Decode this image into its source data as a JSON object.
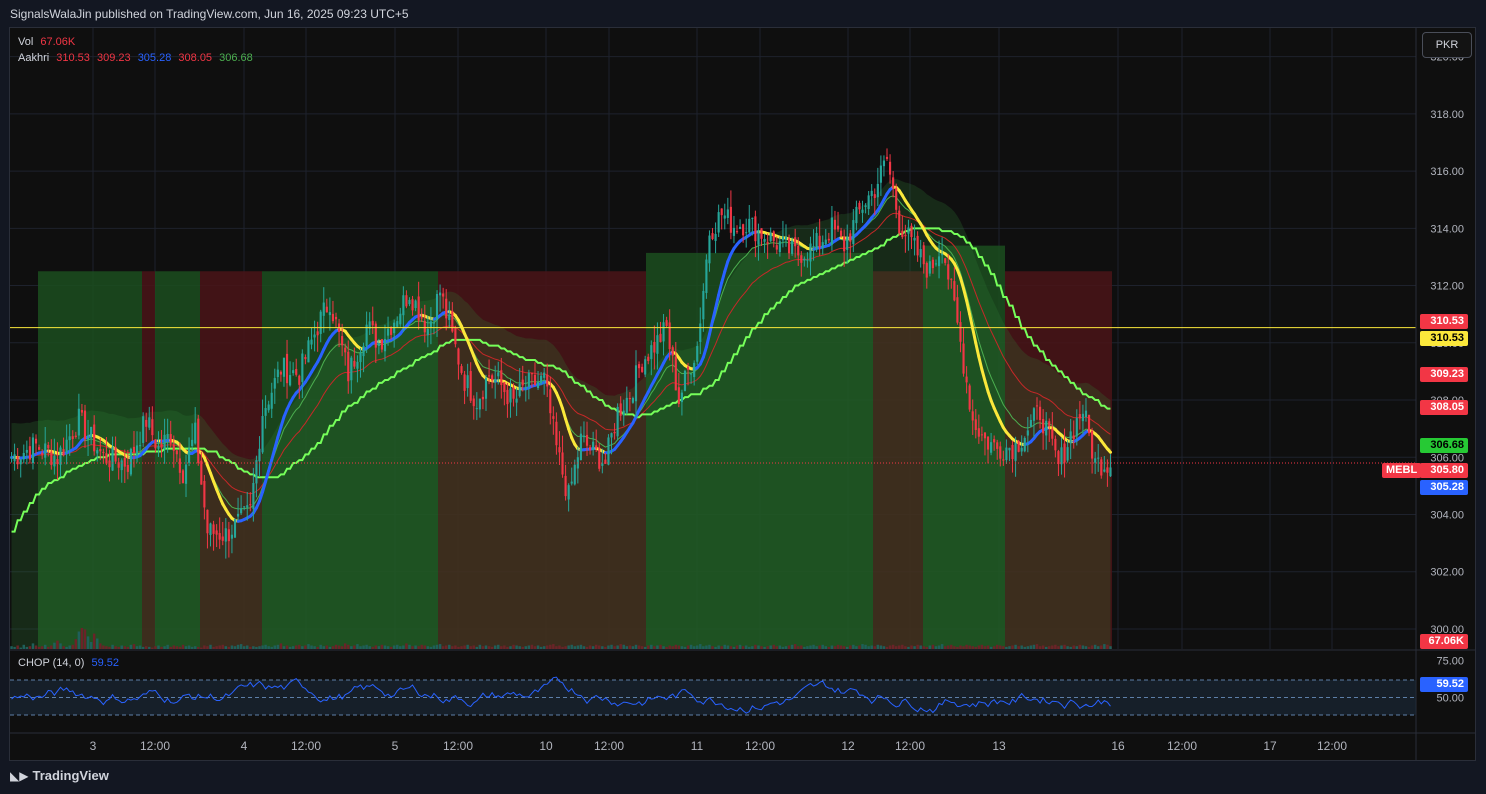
{
  "header": {
    "publisher": "SignalsWalaJin published on TradingView.com, Jun 16, 2025 09:23 UTC+5"
  },
  "footer": {
    "brand": "TradingView"
  },
  "currency_button": "PKR",
  "legend": {
    "vol_label": "Vol",
    "vol_value": "67.06K",
    "ind_label": "Aakhri",
    "ind_values": [
      "310.53",
      "309.23",
      "305.28",
      "308.05",
      "306.68"
    ]
  },
  "chop": {
    "label": "CHOP (14, 0)",
    "value": "59.52",
    "ticks": [
      "75.00",
      "50.00"
    ]
  },
  "colors": {
    "up": "#26a69a",
    "down": "#f23645",
    "yellow": "#fbe83b",
    "blue": "#2962ff",
    "green_line": "#76ff5a",
    "red_line": "#f23645",
    "bg": "#0f0f0f"
  },
  "chart_data": {
    "type": "candlestick",
    "symbol": "MEBL",
    "ylim": [
      299.3,
      321.0
    ],
    "y_ticks": [
      "320.00",
      "318.00",
      "316.00",
      "314.00",
      "312.00",
      "310.00",
      "308.00",
      "306.00",
      "304.00",
      "302.00",
      "300.00"
    ],
    "x_ticks": [
      "3",
      "12:00",
      "4",
      "12:00",
      "5",
      "12:00",
      "10",
      "12:00",
      "11",
      "12:00",
      "12",
      "12:00",
      "13",
      "16",
      "12:00",
      "17",
      "12:00"
    ],
    "price_labels": [
      {
        "text": "310.53",
        "kind": "red"
      },
      {
        "text": "310.53",
        "kind": "yellow"
      },
      {
        "text": "309.23",
        "kind": "red"
      },
      {
        "text": "308.05",
        "kind": "red"
      },
      {
        "text": "306.68",
        "kind": "green"
      },
      {
        "text": "305.80",
        "kind": "red",
        "symbol": "MEBL"
      },
      {
        "text": "305.28",
        "kind": "blue"
      },
      {
        "text": "67.06K",
        "kind": "red"
      }
    ],
    "horizontal_line": 310.53,
    "last_price": 305.8,
    "anchors": [
      [
        0,
        306.0
      ],
      [
        8,
        306.4
      ],
      [
        15,
        306.0
      ],
      [
        22,
        307.3
      ],
      [
        30,
        306.0
      ],
      [
        38,
        305.8
      ],
      [
        44,
        307.3
      ],
      [
        48,
        306.3
      ],
      [
        52,
        306.8
      ],
      [
        56,
        305.5
      ],
      [
        60,
        306.8
      ],
      [
        64,
        303.4
      ],
      [
        70,
        303.3
      ],
      [
        78,
        304.1
      ],
      [
        82,
        307.6
      ],
      [
        88,
        309.1
      ],
      [
        94,
        308.9
      ],
      [
        100,
        310.6
      ],
      [
        104,
        311.5
      ],
      [
        110,
        308.9
      ],
      [
        116,
        310.6
      ],
      [
        120,
        310.0
      ],
      [
        126,
        311.0
      ],
      [
        130,
        311.8
      ],
      [
        136,
        310.5
      ],
      [
        140,
        311.8
      ],
      [
        144,
        310.2
      ],
      [
        148,
        308.7
      ],
      [
        152,
        308.0
      ],
      [
        156,
        308.9
      ],
      [
        160,
        308.5
      ],
      [
        164,
        307.9
      ],
      [
        168,
        308.5
      ],
      [
        174,
        308.7
      ],
      [
        178,
        306.3
      ],
      [
        182,
        304.6
      ],
      [
        186,
        306.6
      ],
      [
        190,
        306.2
      ],
      [
        194,
        305.8
      ],
      [
        198,
        307.6
      ],
      [
        202,
        308.2
      ],
      [
        206,
        309.4
      ],
      [
        210,
        309.9
      ],
      [
        214,
        310.5
      ],
      [
        218,
        308.0
      ],
      [
        221,
        309.0
      ],
      [
        224,
        309.9
      ],
      [
        228,
        313.9
      ],
      [
        232,
        314.5
      ],
      [
        236,
        314.1
      ],
      [
        240,
        314.2
      ],
      [
        244,
        313.9
      ],
      [
        250,
        313.5
      ],
      [
        256,
        313.1
      ],
      [
        262,
        313.3
      ],
      [
        268,
        314.0
      ],
      [
        272,
        313.4
      ],
      [
        278,
        314.8
      ],
      [
        282,
        315.4
      ],
      [
        286,
        316.4
      ],
      [
        290,
        314.2
      ],
      [
        296,
        313.1
      ],
      [
        300,
        312.5
      ],
      [
        304,
        313.5
      ],
      [
        308,
        311.2
      ],
      [
        310,
        310.0
      ],
      [
        314,
        307.3
      ],
      [
        318,
        306.6
      ],
      [
        322,
        306.3
      ],
      [
        328,
        306.4
      ],
      [
        336,
        307.6
      ],
      [
        342,
        305.7
      ],
      [
        346,
        306.8
      ],
      [
        350,
        307.7
      ],
      [
        354,
        305.8
      ]
    ],
    "volume": [
      4,
      3,
      5,
      2,
      6,
      3,
      4,
      8,
      5,
      3,
      4,
      6,
      3,
      5,
      9,
      12,
      8,
      4,
      3,
      5,
      6,
      14,
      25,
      30,
      28,
      18,
      10,
      22,
      15,
      8,
      5,
      4,
      3,
      6,
      4,
      3,
      5,
      4,
      3,
      6,
      7,
      4,
      5,
      3,
      4,
      3,
      2,
      4,
      5,
      3,
      4,
      6,
      3,
      5,
      4,
      3,
      6,
      4,
      5,
      3,
      4,
      3,
      2,
      5,
      4,
      6,
      3,
      4,
      5,
      6,
      4,
      3,
      5,
      4,
      6,
      7,
      4,
      5,
      3,
      4,
      3,
      4,
      5,
      6,
      4,
      3,
      5,
      6,
      8,
      4,
      5,
      3,
      4,
      5,
      6,
      4,
      5,
      7,
      5,
      4,
      3,
      6,
      4,
      5,
      3,
      4,
      6,
      5,
      4,
      8,
      6,
      4,
      5,
      7,
      4,
      5,
      6,
      4,
      3,
      5,
      4,
      6,
      5,
      4,
      3,
      5,
      6,
      4,
      5,
      8,
      6,
      4,
      5,
      4,
      6,
      5,
      4,
      3,
      5,
      6,
      7,
      4,
      5,
      6,
      4,
      5,
      3,
      4,
      5,
      6,
      4,
      5,
      3,
      6,
      4,
      5,
      4,
      3,
      5,
      6,
      4,
      5,
      3,
      4,
      6,
      5,
      4,
      3,
      4,
      5,
      6,
      4,
      5,
      3,
      4,
      5,
      6,
      7,
      4,
      5,
      3,
      4,
      5,
      6,
      4,
      5,
      6,
      4,
      3,
      5,
      4,
      6,
      5,
      4,
      3,
      5,
      6,
      4,
      5,
      7,
      6,
      4,
      5,
      4,
      6,
      5,
      4,
      3,
      5,
      6,
      4,
      5,
      6,
      4,
      3,
      5,
      4,
      6,
      5,
      4,
      3,
      5,
      6,
      4,
      5,
      7,
      4,
      5,
      6,
      4,
      3,
      5,
      4,
      6,
      5,
      4,
      3,
      5,
      6,
      4,
      5,
      3,
      4,
      6,
      5,
      4,
      3,
      4,
      5,
      6,
      4,
      5,
      3,
      4,
      5,
      6,
      7,
      4,
      5,
      3,
      4,
      5,
      6,
      4,
      5,
      6,
      4,
      3,
      5,
      4,
      6,
      5,
      4,
      3,
      5,
      6,
      4,
      5,
      7,
      6,
      4,
      5,
      4,
      6,
      5,
      4,
      3,
      5,
      6,
      4,
      5,
      6,
      4,
      3,
      5,
      4,
      6,
      5,
      4,
      3,
      5,
      6,
      4,
      5,
      7,
      4,
      5,
      6,
      4,
      3,
      5,
      4,
      6,
      5,
      4,
      3,
      5,
      6,
      4,
      5,
      3,
      4,
      6,
      5,
      4,
      3,
      4,
      5,
      6,
      4,
      5,
      3,
      4,
      5,
      6,
      7,
      4,
      5,
      3,
      4,
      5,
      6,
      4,
      5,
      6,
      4,
      3,
      5,
      4,
      6,
      5,
      4,
      3,
      5,
      6,
      4,
      5,
      7,
      6,
      4,
      5,
      4,
      6,
      5,
      4,
      3,
      5,
      6,
      4,
      5,
      18,
      10,
      8
    ]
  }
}
